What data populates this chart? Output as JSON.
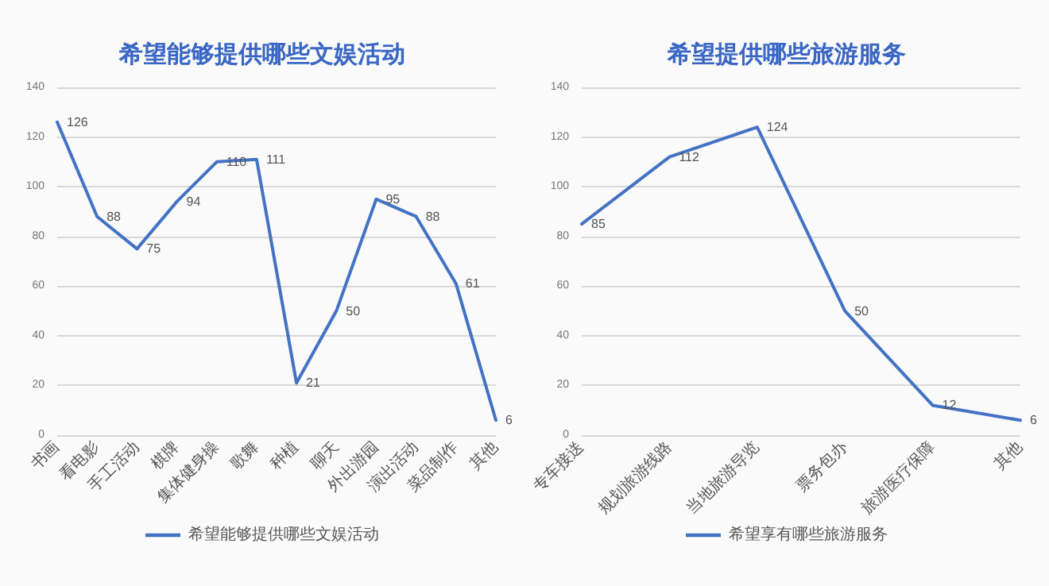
{
  "chart_data": [
    {
      "type": "line",
      "title": "希望能够提供哪些文娱活动",
      "categories": [
        "书画",
        "看电影",
        "手工活动",
        "棋牌",
        "集体健身操",
        "歌舞",
        "种植",
        "聊天",
        "外出游园",
        "演出活动",
        "菜品制作",
        "其他"
      ],
      "series": [
        {
          "name": "希望能够提供哪些文娱活动",
          "color": "#4472c4",
          "values": [
            126,
            88,
            75,
            94,
            110,
            111,
            21,
            50,
            95,
            88,
            61,
            6
          ]
        }
      ],
      "ylim": [
        0,
        140
      ],
      "yticks": [
        0,
        20,
        40,
        60,
        80,
        100,
        120,
        140
      ],
      "grid": "y",
      "legend": "bottom",
      "data_labels": true,
      "marker": "none",
      "line_style": "solid"
    },
    {
      "type": "line",
      "title": "希望提供哪些旅游服务",
      "categories": [
        "专车接送",
        "规划旅游线路",
        "当地旅游导览",
        "票务包办",
        "旅游医疗保障",
        "其他"
      ],
      "series": [
        {
          "name": "希望享有哪些旅游服务",
          "color": "#4472c4",
          "values": [
            85,
            112,
            124,
            50,
            12,
            6
          ]
        }
      ],
      "ylim": [
        0,
        140
      ],
      "yticks": [
        0,
        20,
        40,
        60,
        80,
        100,
        120,
        140
      ],
      "grid": "y",
      "legend": "bottom",
      "data_labels": true,
      "marker": "none",
      "line_style": "solid"
    }
  ]
}
